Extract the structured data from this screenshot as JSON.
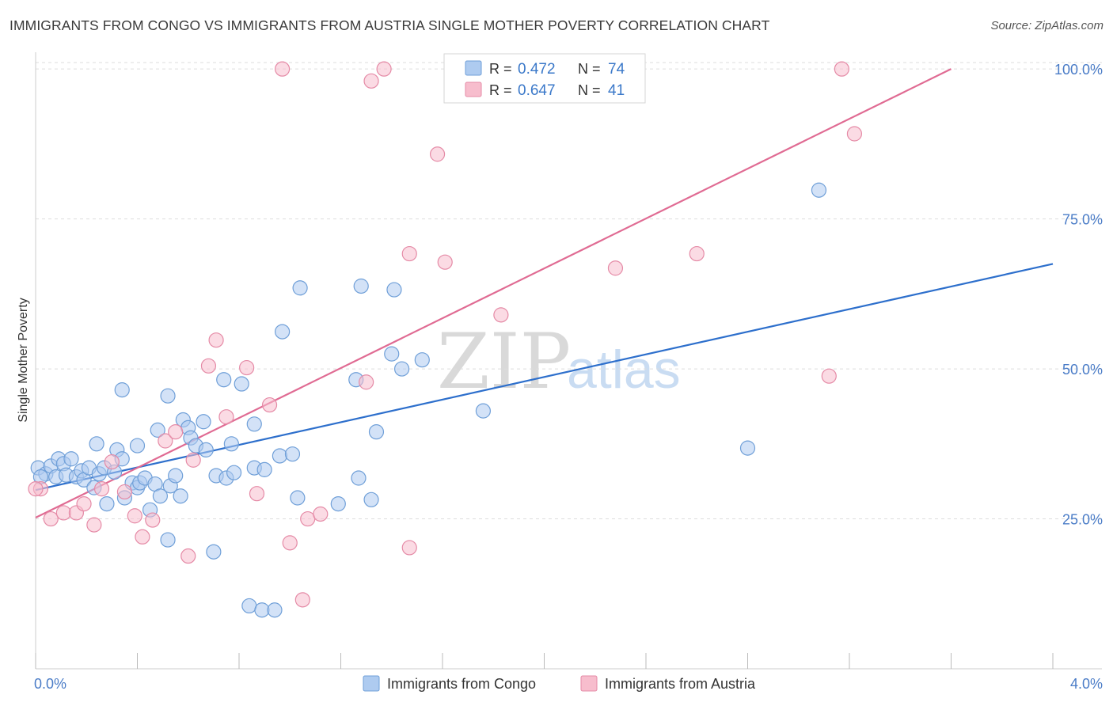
{
  "header": {
    "title": "IMMIGRANTS FROM CONGO VS IMMIGRANTS FROM AUSTRIA SINGLE MOTHER POVERTY CORRELATION CHART",
    "source": "Source: ZipAtlas.com"
  },
  "watermark": {
    "zip": "ZIP",
    "atlas": "atlas"
  },
  "colors": {
    "congo_fill": "#aecbf0",
    "congo_stroke": "#6f9fd8",
    "congo_line": "#2d6fcc",
    "austria_fill": "#f7bdcd",
    "austria_stroke": "#e58aa6",
    "austria_line": "#e06b93",
    "grid": "#dddddd",
    "axis_label": "#4a7cc7"
  },
  "chart_data": {
    "type": "scatter",
    "title": "IMMIGRANTS FROM CONGO VS IMMIGRANTS FROM AUSTRIA SINGLE MOTHER POVERTY CORRELATION CHART",
    "xlabel": "",
    "ylabel": "Single Mother Poverty",
    "xlim": [
      0,
      4.0
    ],
    "ylim": [
      0,
      102
    ],
    "x_tick_labels": [
      {
        "value": 0,
        "label": "0.0%"
      },
      {
        "value": 4.0,
        "label": "4.0%"
      }
    ],
    "x_minor_ticks": [
      0,
      0.4,
      0.8,
      1.2,
      1.6,
      2.0,
      2.4,
      2.8,
      3.2,
      3.6,
      4.0
    ],
    "y_ticks": [
      {
        "value": 25,
        "label": "25.0%"
      },
      {
        "value": 50,
        "label": "50.0%"
      },
      {
        "value": 75,
        "label": "75.0%"
      },
      {
        "value": 100,
        "label": "100.0%"
      }
    ],
    "legend": {
      "position": "top-center",
      "entries": [
        {
          "series": "congo",
          "r_label": "R =",
          "r_value": "0.472",
          "n_label": "N =",
          "n_value": "74"
        },
        {
          "series": "austria",
          "r_label": "R =",
          "r_value": "0.647",
          "n_label": "N =",
          "n_value": "41"
        }
      ]
    },
    "bottom_legend": [
      "Immigrants from Congo",
      "Immigrants from Austria"
    ],
    "series": [
      {
        "name": "Immigrants from Congo",
        "key": "congo",
        "trend": {
          "x": [
            0,
            4.0
          ],
          "y": [
            29.8,
            67.5
          ]
        },
        "points": [
          [
            0.01,
            33.5
          ],
          [
            0.04,
            32.5
          ],
          [
            0.06,
            33.8
          ],
          [
            0.08,
            32
          ],
          [
            0.09,
            35
          ],
          [
            0.11,
            34.2
          ],
          [
            0.12,
            32.3
          ],
          [
            0.14,
            35
          ],
          [
            0.16,
            32
          ],
          [
            0.18,
            33
          ],
          [
            0.19,
            31.5
          ],
          [
            0.21,
            33.5
          ],
          [
            0.23,
            30.2
          ],
          [
            0.24,
            37.5
          ],
          [
            0.25,
            32.5
          ],
          [
            0.27,
            33.5
          ],
          [
            0.28,
            27.5
          ],
          [
            0.31,
            32.8
          ],
          [
            0.32,
            36.5
          ],
          [
            0.34,
            35
          ],
          [
            0.34,
            46.5
          ],
          [
            0.35,
            28.5
          ],
          [
            0.38,
            31
          ],
          [
            0.4,
            30.2
          ],
          [
            0.4,
            37.2
          ],
          [
            0.41,
            31
          ],
          [
            0.43,
            31.8
          ],
          [
            0.45,
            26.5
          ],
          [
            0.47,
            30.8
          ],
          [
            0.48,
            39.8
          ],
          [
            0.49,
            28.8
          ],
          [
            0.52,
            45.5
          ],
          [
            0.52,
            21.5
          ],
          [
            0.53,
            30.5
          ],
          [
            0.55,
            32.2
          ],
          [
            0.57,
            28.8
          ],
          [
            0.58,
            41.5
          ],
          [
            0.6,
            40.2
          ],
          [
            0.61,
            38.5
          ],
          [
            0.63,
            37.2
          ],
          [
            0.66,
            41.2
          ],
          [
            0.67,
            36.5
          ],
          [
            0.7,
            19.5
          ],
          [
            0.71,
            32.2
          ],
          [
            0.74,
            48.2
          ],
          [
            0.75,
            31.8
          ],
          [
            0.77,
            37.5
          ],
          [
            0.78,
            32.7
          ],
          [
            0.81,
            47.5
          ],
          [
            0.84,
            10.5
          ],
          [
            0.86,
            33.5
          ],
          [
            0.86,
            40.8
          ],
          [
            0.89,
            9.8
          ],
          [
            0.9,
            33.2
          ],
          [
            0.94,
            9.8
          ],
          [
            0.96,
            35.5
          ],
          [
            0.97,
            56.2
          ],
          [
            1.01,
            35.8
          ],
          [
            1.03,
            28.5
          ],
          [
            1.04,
            63.5
          ],
          [
            1.19,
            27.5
          ],
          [
            1.26,
            48.2
          ],
          [
            1.27,
            31.8
          ],
          [
            1.28,
            63.8
          ],
          [
            1.32,
            28.2
          ],
          [
            1.34,
            39.5
          ],
          [
            1.4,
            52.5
          ],
          [
            1.41,
            63.2
          ],
          [
            1.44,
            50
          ],
          [
            1.52,
            51.5
          ],
          [
            1.76,
            43
          ],
          [
            2.8,
            36.8
          ],
          [
            3.08,
            79.8
          ],
          [
            0.02,
            32
          ]
        ]
      },
      {
        "name": "Immigrants from Austria",
        "key": "austria",
        "trend": {
          "x": [
            0,
            3.6
          ],
          "y": [
            25.2,
            100
          ]
        },
        "points": [
          [
            0.02,
            30
          ],
          [
            0.06,
            25
          ],
          [
            0.11,
            26
          ],
          [
            0.16,
            26
          ],
          [
            0.19,
            27.5
          ],
          [
            0.23,
            24
          ],
          [
            0.26,
            30
          ],
          [
            0.3,
            34.5
          ],
          [
            0.35,
            29.5
          ],
          [
            0.39,
            25.5
          ],
          [
            0.42,
            22
          ],
          [
            0.46,
            24.8
          ],
          [
            0.51,
            38
          ],
          [
            0.55,
            39.5
          ],
          [
            0.6,
            18.8
          ],
          [
            0.62,
            34.8
          ],
          [
            0.68,
            50.5
          ],
          [
            0.71,
            54.8
          ],
          [
            0.75,
            42
          ],
          [
            0.83,
            50.2
          ],
          [
            0.87,
            29.2
          ],
          [
            0.92,
            44
          ],
          [
            0.97,
            100
          ],
          [
            1.0,
            21
          ],
          [
            1.05,
            11.5
          ],
          [
            1.07,
            25
          ],
          [
            1.12,
            25.8
          ],
          [
            1.3,
            47.8
          ],
          [
            1.32,
            98
          ],
          [
            1.37,
            100
          ],
          [
            1.47,
            20.2
          ],
          [
            1.47,
            69.2
          ],
          [
            1.58,
            85.8
          ],
          [
            1.61,
            67.8
          ],
          [
            1.83,
            59
          ],
          [
            2.28,
            66.8
          ],
          [
            2.6,
            69.2
          ],
          [
            3.12,
            48.8
          ],
          [
            3.17,
            100
          ],
          [
            3.22,
            89.2
          ],
          [
            0.0,
            30
          ]
        ]
      }
    ]
  }
}
